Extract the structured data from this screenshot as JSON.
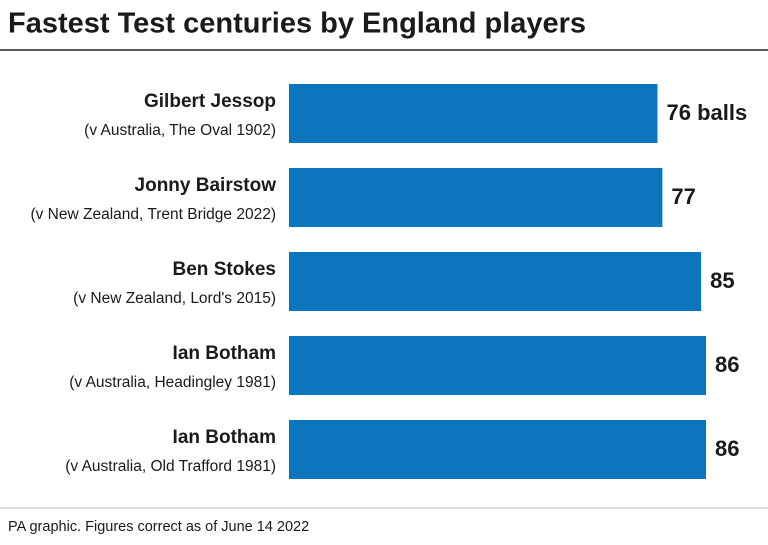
{
  "chart_data": {
    "type": "hbar",
    "title": "Fastest Test centuries by England players",
    "categories": [
      "Gilbert Jessop",
      "Jonny Bairstow",
      "Ben Stokes",
      "Ian Botham",
      "Ian Botham"
    ],
    "subtitles": [
      "(v Australia, The Oval 1902)",
      "(v New Zealand, Trent Bridge 2022)",
      "(v New Zealand, Lord's 2015)",
      "(v Australia, Headingley 1981)",
      "(v Australia, Old Trafford 1981)"
    ],
    "values": [
      76,
      77,
      85,
      86,
      86
    ],
    "value_labels": [
      "76 balls",
      "77",
      "85",
      "86",
      "86"
    ],
    "color": "#0b76be",
    "note": "PA graphic. Figures correct as of June 14 2022"
  }
}
